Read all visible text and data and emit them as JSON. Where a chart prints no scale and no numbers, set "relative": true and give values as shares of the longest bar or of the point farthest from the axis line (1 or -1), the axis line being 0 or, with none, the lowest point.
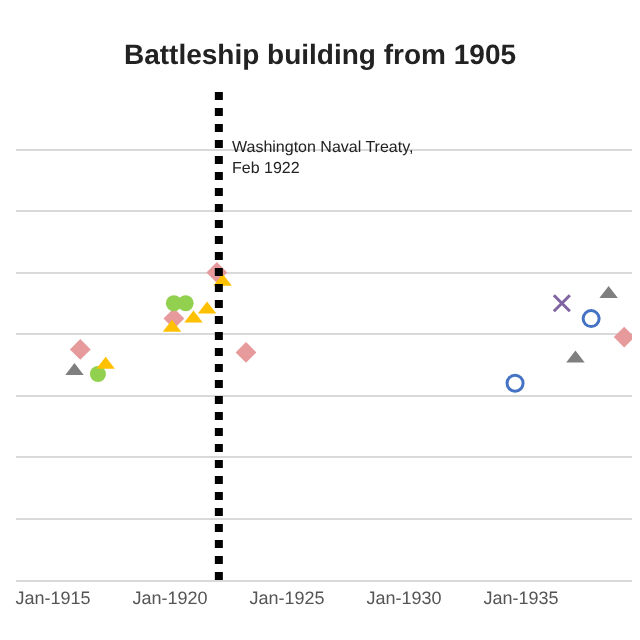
{
  "chart_data": {
    "type": "scatter",
    "title": "Battleship building from 1905",
    "relative": true,
    "grid": "y",
    "xlim": [
      "1913-06",
      "1939-10"
    ],
    "xticks": [
      {
        "value": "1915-01",
        "label": "Jan-1915"
      },
      {
        "value": "1920-01",
        "label": "Jan-1920"
      },
      {
        "value": "1925-01",
        "label": "Jan-1925"
      },
      {
        "value": "1930-01",
        "label": "Jan-1930"
      },
      {
        "value": "1935-01",
        "label": "Jan-1935"
      }
    ],
    "ref_lines": [
      {
        "axis": "x",
        "value": "1922-02",
        "label": "Washington Naval Treaty, Feb 1922",
        "color": "#000000",
        "line_style": "dotted"
      }
    ],
    "series": [
      {
        "color": "#7f7f7f",
        "marker": "triangle",
        "x": [
          "1915-12",
          "1937-05",
          "1938-10"
        ],
        "values": [
          0.68,
          0.72,
          0.93
        ]
      },
      {
        "color": "#e69a9b",
        "marker": "diamond",
        "x": [
          "1916-03",
          "1920-03",
          "1922-01",
          "1923-04",
          "1939-06"
        ],
        "values": [
          0.75,
          0.85,
          1.0,
          0.74,
          0.79
        ]
      },
      {
        "color": "#92d050",
        "marker": "circle",
        "x": [
          "1916-12",
          "1920-03",
          "1920-09"
        ],
        "values": [
          0.67,
          0.9,
          0.9
        ]
      },
      {
        "color": "#ffc000",
        "marker": "triangle",
        "x": [
          "1917-04",
          "1920-02",
          "1921-01",
          "1921-08",
          "1922-04"
        ],
        "values": [
          0.7,
          0.82,
          0.85,
          0.88,
          0.97
        ]
      },
      {
        "color": "#4472c4",
        "marker": "circle-open",
        "x": [
          "1934-10",
          "1938-01"
        ],
        "values": [
          0.64,
          0.85
        ]
      },
      {
        "color": "#8064a2",
        "marker": "cross",
        "x": [
          "1936-10"
        ],
        "values": [
          0.9
        ]
      }
    ]
  }
}
